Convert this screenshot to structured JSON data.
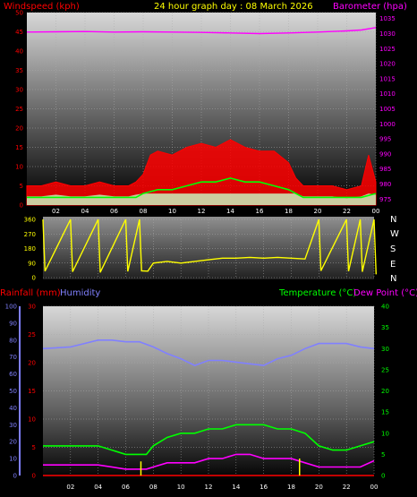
{
  "header": {
    "windspeed_label": "Windspeed (kph)",
    "title": "24 hour graph day : 08 March 2026",
    "barometer_label": "Barometer (hpa)"
  },
  "lower_header": {
    "rainfall_label": "Rainfall (mm)",
    "humidity_label": "Humidity",
    "temperature_label": "Temperature (°C)",
    "dewpoint_label": "Dew Point (°C)"
  },
  "compass_labels": [
    "N",
    "W",
    "S",
    "E",
    "N"
  ],
  "colors": {
    "wind_gust": "#ff0000",
    "wind_avg": "#00ff00",
    "wind_dist": "#c8ffc8",
    "barometer": "#ff00ff",
    "wind_dir": "#ffff00",
    "rainfall": "#ff0000",
    "humidity": "#8080ff",
    "temperature": "#00ff00",
    "dewpoint": "#ff00ff",
    "rain_bar": "#ffff00",
    "title": "#ffff00"
  },
  "chart_data": [
    {
      "type": "line",
      "name": "wind-barometer",
      "x_ticks": [
        "02",
        "04",
        "06",
        "08",
        "10",
        "12",
        "14",
        "16",
        "18",
        "20",
        "22",
        "00"
      ],
      "y_left_ticks": [
        0,
        5,
        10,
        15,
        20,
        25,
        30,
        35,
        40,
        45,
        50
      ],
      "y_left_range": [
        0,
        50
      ],
      "y_right_ticks": [
        975,
        980,
        985,
        990,
        995,
        1000,
        1005,
        1010,
        1015,
        1020,
        1025,
        1030,
        1035
      ],
      "y_right_range": [
        973,
        1037
      ],
      "series": [
        {
          "name": "Windspeed (kph)",
          "x": [
            0,
            1,
            2,
            3,
            4,
            5,
            6,
            7,
            7.5,
            8,
            8.5,
            9,
            10,
            11,
            12,
            13,
            14,
            15,
            16,
            17,
            18,
            18.5,
            19,
            20,
            21,
            22,
            23,
            23.5,
            24
          ],
          "y": [
            5,
            5,
            6,
            5,
            5,
            6,
            5,
            5,
            6,
            8,
            13,
            14,
            13,
            15,
            16,
            15,
            17,
            15,
            14,
            14,
            11,
            7,
            5,
            5,
            5,
            4,
            5,
            13,
            6
          ]
        },
        {
          "name": "Average",
          "x": [
            0,
            2,
            4,
            6,
            7.5,
            8,
            9,
            10,
            11,
            12,
            13,
            14,
            15,
            16,
            17,
            18,
            19,
            20,
            22,
            23,
            24
          ],
          "y": [
            2,
            2,
            2,
            2,
            2,
            3,
            4,
            4,
            5,
            6,
            6,
            7,
            6,
            6,
            5,
            4,
            2,
            2,
            2,
            2,
            3
          ]
        },
        {
          "name": "Barometer (hpa)",
          "x": [
            0,
            2,
            4,
            6,
            8,
            10,
            12,
            14,
            16,
            18,
            20,
            22,
            23,
            24
          ],
          "y": [
            1030.5,
            1030.6,
            1030.7,
            1030.5,
            1030.6,
            1030.5,
            1030.4,
            1030.2,
            1030.0,
            1030.2,
            1030.5,
            1030.9,
            1031.2,
            1032
          ]
        }
      ]
    },
    {
      "type": "line",
      "name": "wind-direction",
      "x_ticks": [
        "02",
        "04",
        "06",
        "08",
        "10",
        "12",
        "14",
        "16",
        "18",
        "20",
        "22",
        "00"
      ],
      "y_ticks": [
        0,
        90,
        180,
        270,
        360
      ],
      "y_range": [
        0,
        360
      ],
      "series": [
        {
          "name": "Direction",
          "x": [
            0,
            2,
            4,
            6,
            7,
            7.6,
            8,
            9,
            10,
            11,
            12,
            13,
            14,
            15,
            16,
            17,
            18,
            19,
            20,
            22,
            23,
            24
          ],
          "y": [
            200,
            180,
            160,
            190,
            210,
            40,
            90,
            100,
            90,
            100,
            110,
            120,
            120,
            125,
            120,
            125,
            120,
            115,
            210,
            200,
            180,
            100
          ]
        }
      ]
    },
    {
      "type": "line",
      "name": "rain-humidity-temperature",
      "x_ticks": [
        "02",
        "04",
        "06",
        "08",
        "10",
        "12",
        "14",
        "16",
        "18",
        "20",
        "22",
        "00"
      ],
      "y_rain_ticks": [
        0,
        5,
        10,
        15,
        20,
        25,
        30
      ],
      "y_rain_range": [
        0,
        30
      ],
      "y_humidity_ticks": [
        0,
        10,
        20,
        30,
        40,
        50,
        60,
        70,
        80,
        90,
        100
      ],
      "y_humidity_range": [
        0,
        100
      ],
      "y_temp_ticks": [
        0,
        5,
        10,
        15,
        20,
        25,
        30,
        35,
        40
      ],
      "y_temp_range": [
        0,
        40
      ],
      "series": [
        {
          "name": "Humidity",
          "x": [
            0,
            2,
            3,
            4,
            5,
            6,
            7,
            8,
            9,
            10,
            11,
            12,
            13,
            14,
            15,
            16,
            17,
            18,
            19,
            20,
            21,
            22,
            23,
            24
          ],
          "y": [
            75,
            76,
            78,
            80,
            80,
            79,
            79,
            76,
            72,
            69,
            65,
            68,
            68,
            67,
            66,
            65,
            69,
            71,
            75,
            78,
            78,
            78,
            76,
            75
          ]
        },
        {
          "name": "Temperature (°C)",
          "x": [
            0,
            2,
            4,
            6,
            7.5,
            8,
            9,
            10,
            11,
            12,
            13,
            14,
            15,
            16,
            17,
            18,
            19,
            20,
            21,
            22,
            23,
            24
          ],
          "y": [
            7,
            7,
            7,
            5,
            5,
            7,
            9,
            10,
            10,
            11,
            11,
            12,
            12,
            12,
            11,
            11,
            10,
            7,
            6,
            6,
            7,
            8
          ]
        },
        {
          "name": "Dew Point (°C)",
          "x": [
            0,
            2,
            4,
            6,
            7.5,
            8,
            9,
            10,
            11,
            12,
            13,
            14,
            15,
            16,
            17,
            18,
            19,
            20,
            21,
            22,
            23,
            24
          ],
          "y": [
            2.5,
            2.5,
            2.5,
            1.5,
            1.5,
            2,
            3,
            3,
            3,
            4,
            4,
            5,
            5,
            4,
            4,
            4,
            3,
            2,
            2,
            2,
            2,
            3.5
          ]
        },
        {
          "name": "Rainfall (mm)",
          "x": [
            0,
            24
          ],
          "y": [
            0,
            0
          ]
        }
      ],
      "rain_bars": [
        {
          "x": 7.1,
          "value": 2.5
        },
        {
          "x": 18.6,
          "value": 3
        }
      ]
    }
  ]
}
